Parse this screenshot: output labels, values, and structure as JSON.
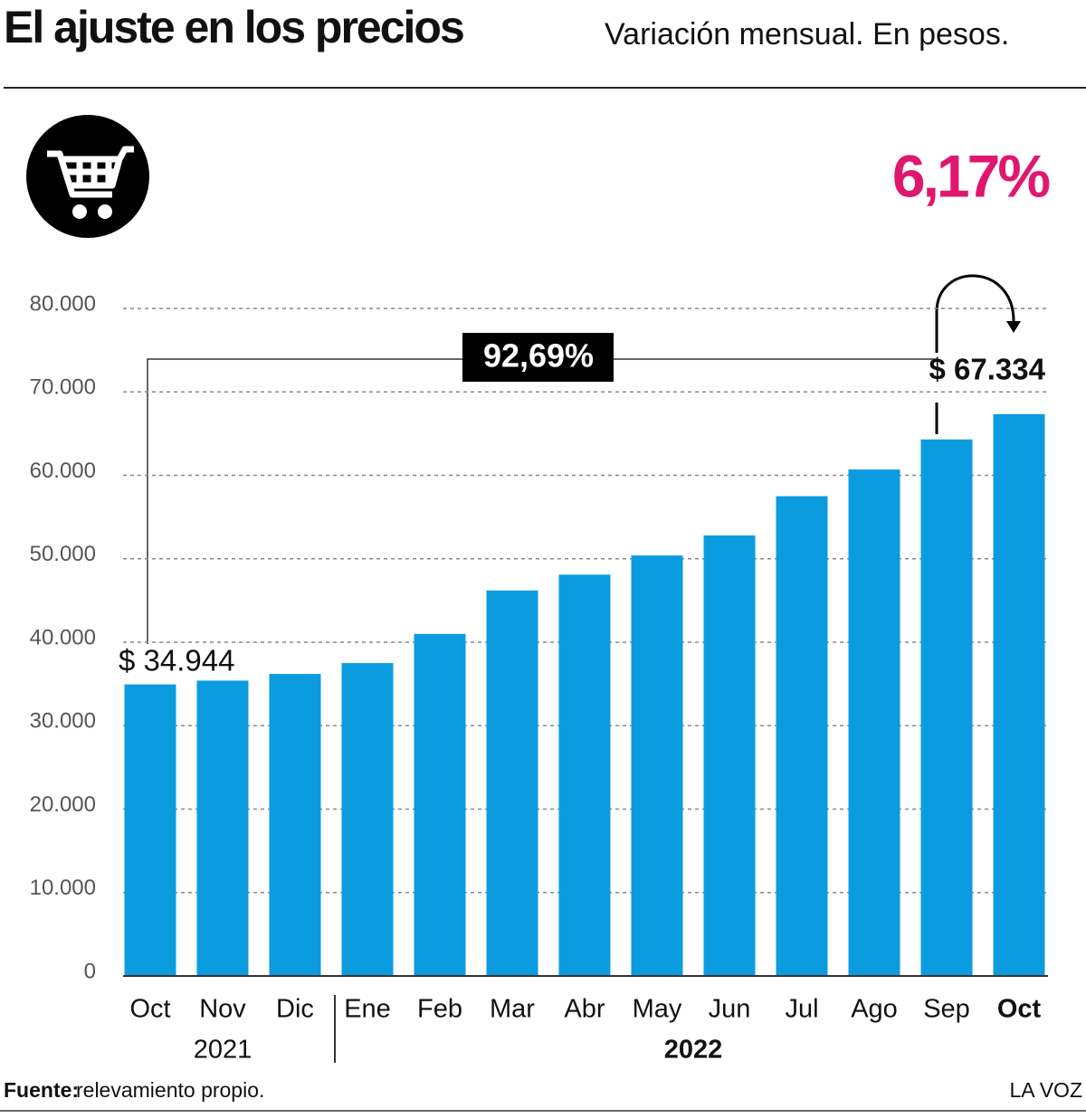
{
  "chart_data": {
    "type": "bar",
    "title": "El ajuste en los precios",
    "subtitle": "Variación mensual. En pesos.",
    "highlight": "6,17%",
    "annotation": "92,69%",
    "categories": [
      "Oct",
      "Nov",
      "Dic",
      "Ene",
      "Feb",
      "Mar",
      "Abr",
      "May",
      "Jun",
      "Jul",
      "Ago",
      "Sep",
      "Oct"
    ],
    "year_groups": [
      "2021",
      "2022"
    ],
    "values": [
      34944,
      35400,
      36200,
      37500,
      41000,
      46200,
      48100,
      50400,
      52800,
      57500,
      60700,
      64300,
      67334
    ],
    "value_labels": [
      "$ 34.944",
      null,
      null,
      null,
      null,
      null,
      null,
      null,
      null,
      null,
      null,
      null,
      "$ 67.334"
    ],
    "color": "#0b9ce0",
    "ylim": [
      0,
      80000
    ],
    "yticks": [
      0,
      {
        "value": 10000,
        "label": "10.000"
      },
      {
        "value": 20000,
        "label": "20.000"
      },
      {
        "value": 30000,
        "label": "30.000"
      },
      {
        "value": 40000,
        "label": "40.000"
      },
      {
        "value": 50000,
        "label": "50.000"
      },
      {
        "value": 60000,
        "label": "60.000"
      },
      {
        "value": 70000,
        "label": "70.000"
      },
      {
        "value": 80000,
        "label": "80.000"
      }
    ],
    "grid": true,
    "source_label": "Fuente:",
    "source": "relevamiento propio.",
    "brand": "LA VOZ"
  }
}
